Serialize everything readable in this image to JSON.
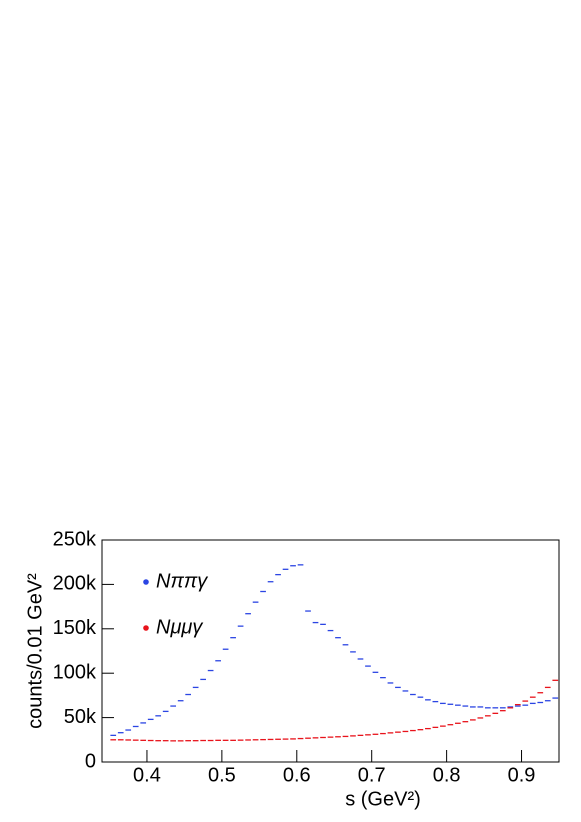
{
  "chart_data": {
    "type": "histogram",
    "xlabel": "s  (GeV²)",
    "ylabel": "counts/0.01 GeV²",
    "bins": [
      0.35,
      0.36,
      0.37,
      0.38,
      0.39,
      0.4,
      0.41,
      0.42,
      0.43,
      0.44,
      0.45,
      0.46,
      0.47,
      0.48,
      0.49,
      0.5,
      0.51,
      0.52,
      0.53,
      0.54,
      0.55,
      0.56,
      0.57,
      0.58,
      0.59,
      0.6,
      0.61,
      0.62,
      0.63,
      0.64,
      0.65,
      0.66,
      0.67,
      0.68,
      0.69,
      0.7,
      0.71,
      0.72,
      0.73,
      0.74,
      0.75,
      0.76,
      0.77,
      0.78,
      0.79,
      0.8,
      0.81,
      0.82,
      0.83,
      0.84,
      0.85,
      0.86,
      0.87,
      0.88,
      0.89,
      0.9,
      0.91,
      0.92,
      0.93,
      0.94,
      0.95
    ],
    "series": [
      {
        "name": "Nππγ",
        "color": "#2b45e3",
        "values": [
          30000,
          33000,
          36000,
          40000,
          44000,
          48000,
          52000,
          57000,
          63000,
          69000,
          76000,
          84000,
          93000,
          103000,
          114000,
          127000,
          140000,
          153000,
          167000,
          180000,
          192000,
          203000,
          211000,
          217000,
          221000,
          222000,
          170000,
          157000,
          155000,
          148000,
          140000,
          132000,
          124000,
          116000,
          108000,
          101000,
          95000,
          89000,
          84000,
          80000,
          76000,
          73000,
          70000,
          68000,
          66000,
          65000,
          64000,
          63000,
          62000,
          62000,
          61000,
          61000,
          61000,
          62000,
          63000,
          64000,
          66000,
          67000,
          69000,
          72000
        ]
      },
      {
        "name": "Nμμγ",
        "color": "#e8131b",
        "values": [
          25000,
          25000,
          24800,
          24600,
          24400,
          24200,
          24000,
          24000,
          23800,
          23800,
          24000,
          24000,
          24200,
          24200,
          24400,
          24400,
          24400,
          24600,
          24800,
          25000,
          25200,
          25400,
          25600,
          25800,
          26000,
          26400,
          26800,
          27200,
          27600,
          28000,
          28400,
          28800,
          29400,
          30000,
          30600,
          31200,
          32000,
          32800,
          33600,
          34400,
          35400,
          36400,
          37600,
          39000,
          40400,
          42000,
          43600,
          45400,
          47400,
          49600,
          52000,
          54800,
          57800,
          61000,
          64600,
          68600,
          73000,
          78000,
          84000,
          92000
        ]
      }
    ],
    "xlim": [
      0.34,
      0.95
    ],
    "ylim": [
      0,
      250000
    ],
    "xticks": [
      0.4,
      0.5,
      0.6,
      0.7,
      0.8,
      0.9
    ],
    "yticks": [
      0,
      {
        "value": 50000,
        "label": "50k"
      },
      {
        "value": 100000,
        "label": "100k"
      },
      {
        "value": 150000,
        "label": "150k"
      },
      {
        "value": 200000,
        "label": "200k"
      },
      {
        "value": 250000,
        "label": "250k"
      }
    ],
    "legend": "upper left"
  }
}
